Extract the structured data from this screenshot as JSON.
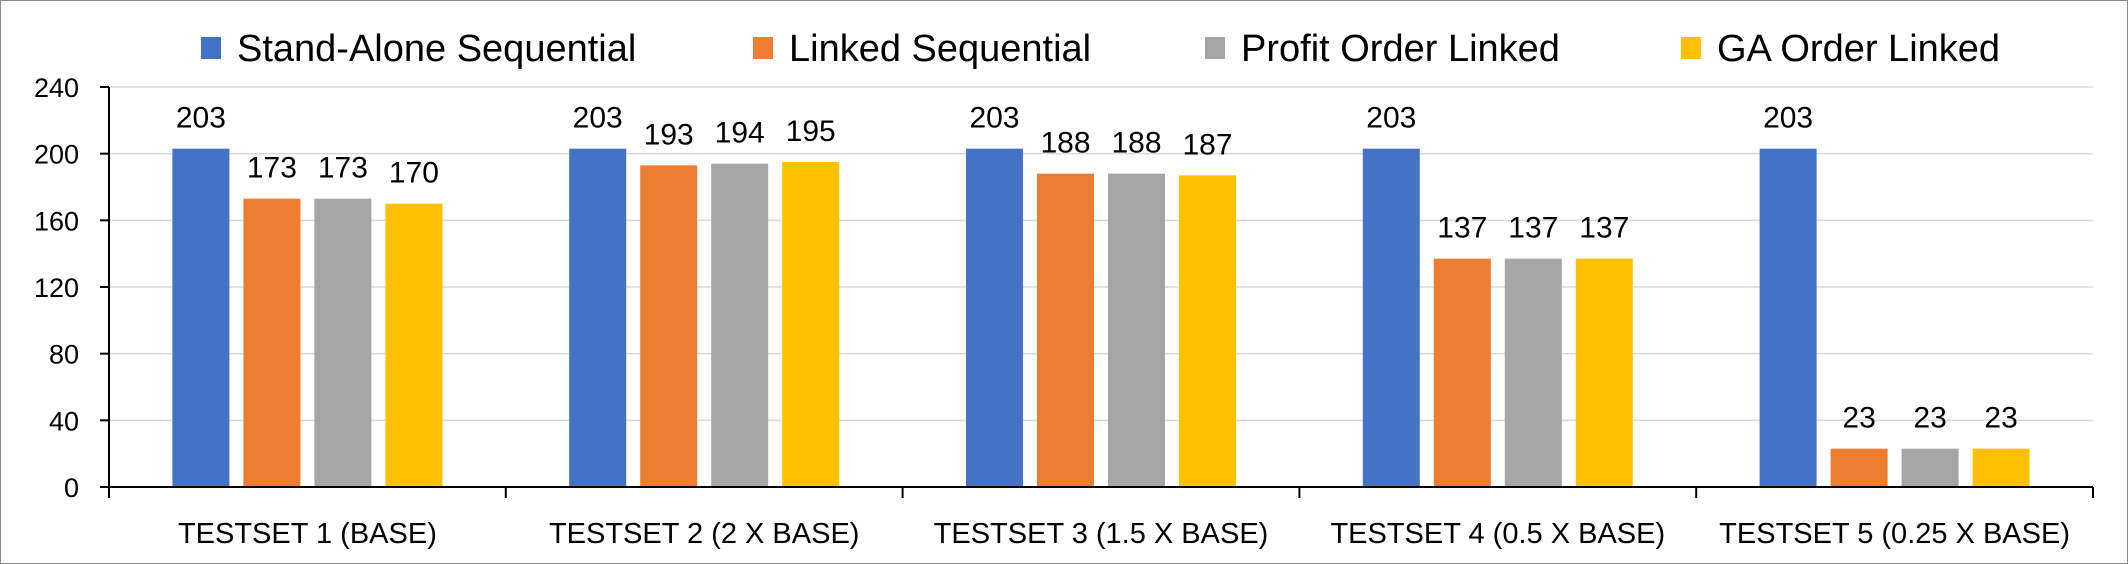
{
  "chart_data": {
    "type": "bar",
    "title": "",
    "xlabel": "",
    "ylabel": "",
    "categories": [
      "TESTSET 1 (BASE)",
      "TESTSET 2 (2 X BASE)",
      "TESTSET 3 (1.5 X BASE)",
      "TESTSET 4 (0.5 X BASE)",
      "TESTSET 5 (0.25 X BASE)"
    ],
    "series": [
      {
        "name": "Stand-Alone Sequential",
        "color": "#4472c4",
        "values": [
          203,
          203,
          203,
          203,
          203
        ]
      },
      {
        "name": "Linked Sequential",
        "color": "#ed7d31",
        "values": [
          173,
          193,
          188,
          137,
          23
        ]
      },
      {
        "name": "Profit Order Linked",
        "color": "#a5a5a5",
        "values": [
          173,
          194,
          188,
          137,
          23
        ]
      },
      {
        "name": "GA Order Linked",
        "color": "#ffc000",
        "values": [
          170,
          195,
          187,
          137,
          23
        ]
      }
    ],
    "ylim": [
      0,
      240
    ],
    "yticks": [
      0,
      40,
      80,
      120,
      160,
      200,
      240
    ],
    "grid": true,
    "legend_position": "top",
    "data_labels": true
  }
}
